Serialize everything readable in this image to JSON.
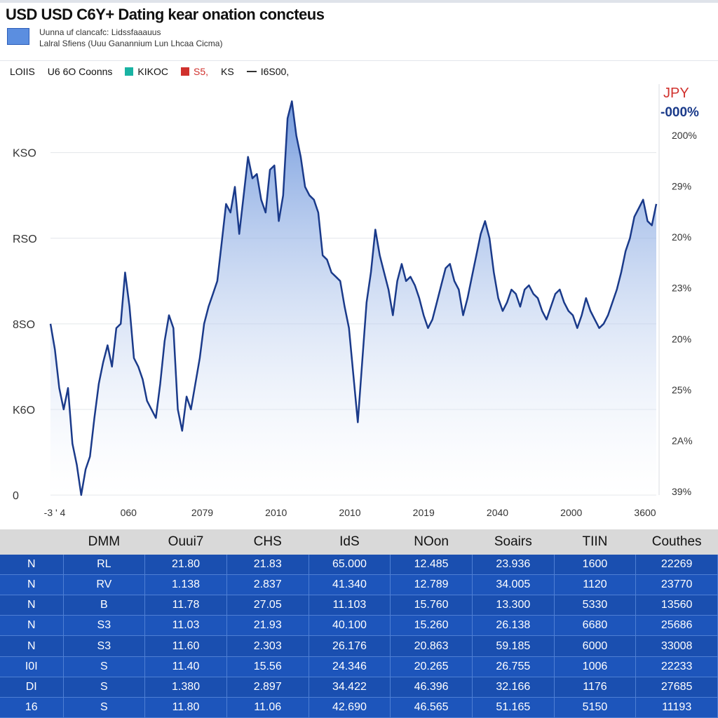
{
  "header": {
    "title": "USD USD C6Y+ Dating kear onation concteus",
    "legend_desc_line1": "Uunna uf clancafc: Lidssfaaauus",
    "legend_desc_line2": "Lalral Sfiens (Uuu Ganannium Lun Lhcaa Cicma)"
  },
  "series_bar": {
    "label0": "LOIIS",
    "items": [
      {
        "label": "U6 6O Coonns",
        "color": "#1a3a8a"
      },
      {
        "label": "KIKOC",
        "color": "#19b3a3"
      },
      {
        "label": "S5,",
        "color": "#d0312d"
      },
      {
        "label": "KS",
        "color": "#333333"
      },
      {
        "label": "I6S00,",
        "color": "#333333"
      }
    ]
  },
  "right_axis_header": {
    "label_red": "JPY",
    "label_blue": "-000%"
  },
  "chart_data": {
    "type": "area",
    "title": "USD USD C6Y+ Dating kear onation concteus",
    "y_left_ticks": [
      "KSO",
      "RSO",
      "8SO",
      "K6O",
      "0"
    ],
    "y_left_tick_values": [
      4,
      3,
      2,
      1,
      0
    ],
    "y_right_ticks": [
      "200%",
      "29%",
      "20%",
      "23%",
      "20%",
      "25%",
      "2A%",
      "39%"
    ],
    "x_ticks": [
      "-3 ' 4",
      "060",
      "2079",
      "2010",
      "2010",
      "2019",
      "2040",
      "2000",
      "3600"
    ],
    "ylim": [
      0,
      4.8
    ],
    "line_color": "#1a3a8a",
    "fill_color": "#6a95dd",
    "values": [
      2.0,
      1.7,
      1.25,
      1.0,
      1.25,
      0.6,
      0.35,
      0.0,
      0.3,
      0.45,
      0.9,
      1.3,
      1.55,
      1.75,
      1.5,
      1.95,
      2.0,
      2.6,
      2.2,
      1.6,
      1.5,
      1.35,
      1.1,
      1.0,
      0.9,
      1.3,
      1.8,
      2.1,
      1.95,
      1.0,
      0.75,
      1.15,
      1.0,
      1.3,
      1.6,
      2.0,
      2.2,
      2.35,
      2.5,
      2.95,
      3.4,
      3.3,
      3.6,
      3.05,
      3.5,
      3.95,
      3.7,
      3.75,
      3.45,
      3.3,
      3.8,
      3.85,
      3.2,
      3.5,
      4.4,
      4.6,
      4.2,
      3.95,
      3.6,
      3.5,
      3.45,
      3.3,
      2.8,
      2.75,
      2.6,
      2.55,
      2.5,
      2.2,
      1.95,
      1.4,
      0.85,
      1.55,
      2.25,
      2.6,
      3.1,
      2.8,
      2.6,
      2.4,
      2.1,
      2.5,
      2.7,
      2.5,
      2.55,
      2.45,
      2.3,
      2.1,
      1.95,
      2.05,
      2.25,
      2.45,
      2.65,
      2.7,
      2.5,
      2.4,
      2.1,
      2.3,
      2.55,
      2.8,
      3.05,
      3.2,
      3.0,
      2.6,
      2.3,
      2.15,
      2.25,
      2.4,
      2.35,
      2.2,
      2.4,
      2.45,
      2.35,
      2.3,
      2.15,
      2.05,
      2.2,
      2.35,
      2.4,
      2.25,
      2.15,
      2.1,
      1.95,
      2.1,
      2.3,
      2.15,
      2.05,
      1.95,
      2.0,
      2.1,
      2.25,
      2.4,
      2.6,
      2.85,
      3.0,
      3.25,
      3.35,
      3.45,
      3.2,
      3.15,
      3.4
    ]
  },
  "table": {
    "headers": [
      "",
      "DMM",
      "Ouui7",
      "CHS",
      "IdS",
      "NOon",
      "Soairs",
      "TIIN",
      "Couthes"
    ],
    "rows": [
      [
        "N",
        "RL",
        "21.80",
        "21.83",
        "65.000",
        "12.485",
        "23.936",
        "1600",
        "22269"
      ],
      [
        "N",
        "RV",
        "1.138",
        "2.837",
        "41.340",
        "12.789",
        "34.005",
        "1120",
        "23770"
      ],
      [
        "N",
        "B",
        "11.78",
        "27.05",
        "11.103",
        "15.760",
        "13.300",
        "5330",
        "13560"
      ],
      [
        "N",
        "S3",
        "11.03",
        "21.93",
        "40.100",
        "15.260",
        "26.138",
        "6680",
        "25686"
      ],
      [
        "N",
        "S3",
        "11.60",
        "2.303",
        "26.176",
        "20.863",
        "59.185",
        "6000",
        "33008"
      ],
      [
        "I0I",
        "S",
        "11.40",
        "15.56",
        "24.346",
        "20.265",
        "26.755",
        "1006",
        "22233"
      ],
      [
        "DI",
        "S",
        "1.380",
        "2.897",
        "34.422",
        "46.396",
        "32.166",
        "1176",
        "27685"
      ],
      [
        "16",
        "S",
        "11.80",
        "11.06",
        "42.690",
        "46.565",
        "51.165",
        "5150",
        "11193"
      ]
    ]
  }
}
